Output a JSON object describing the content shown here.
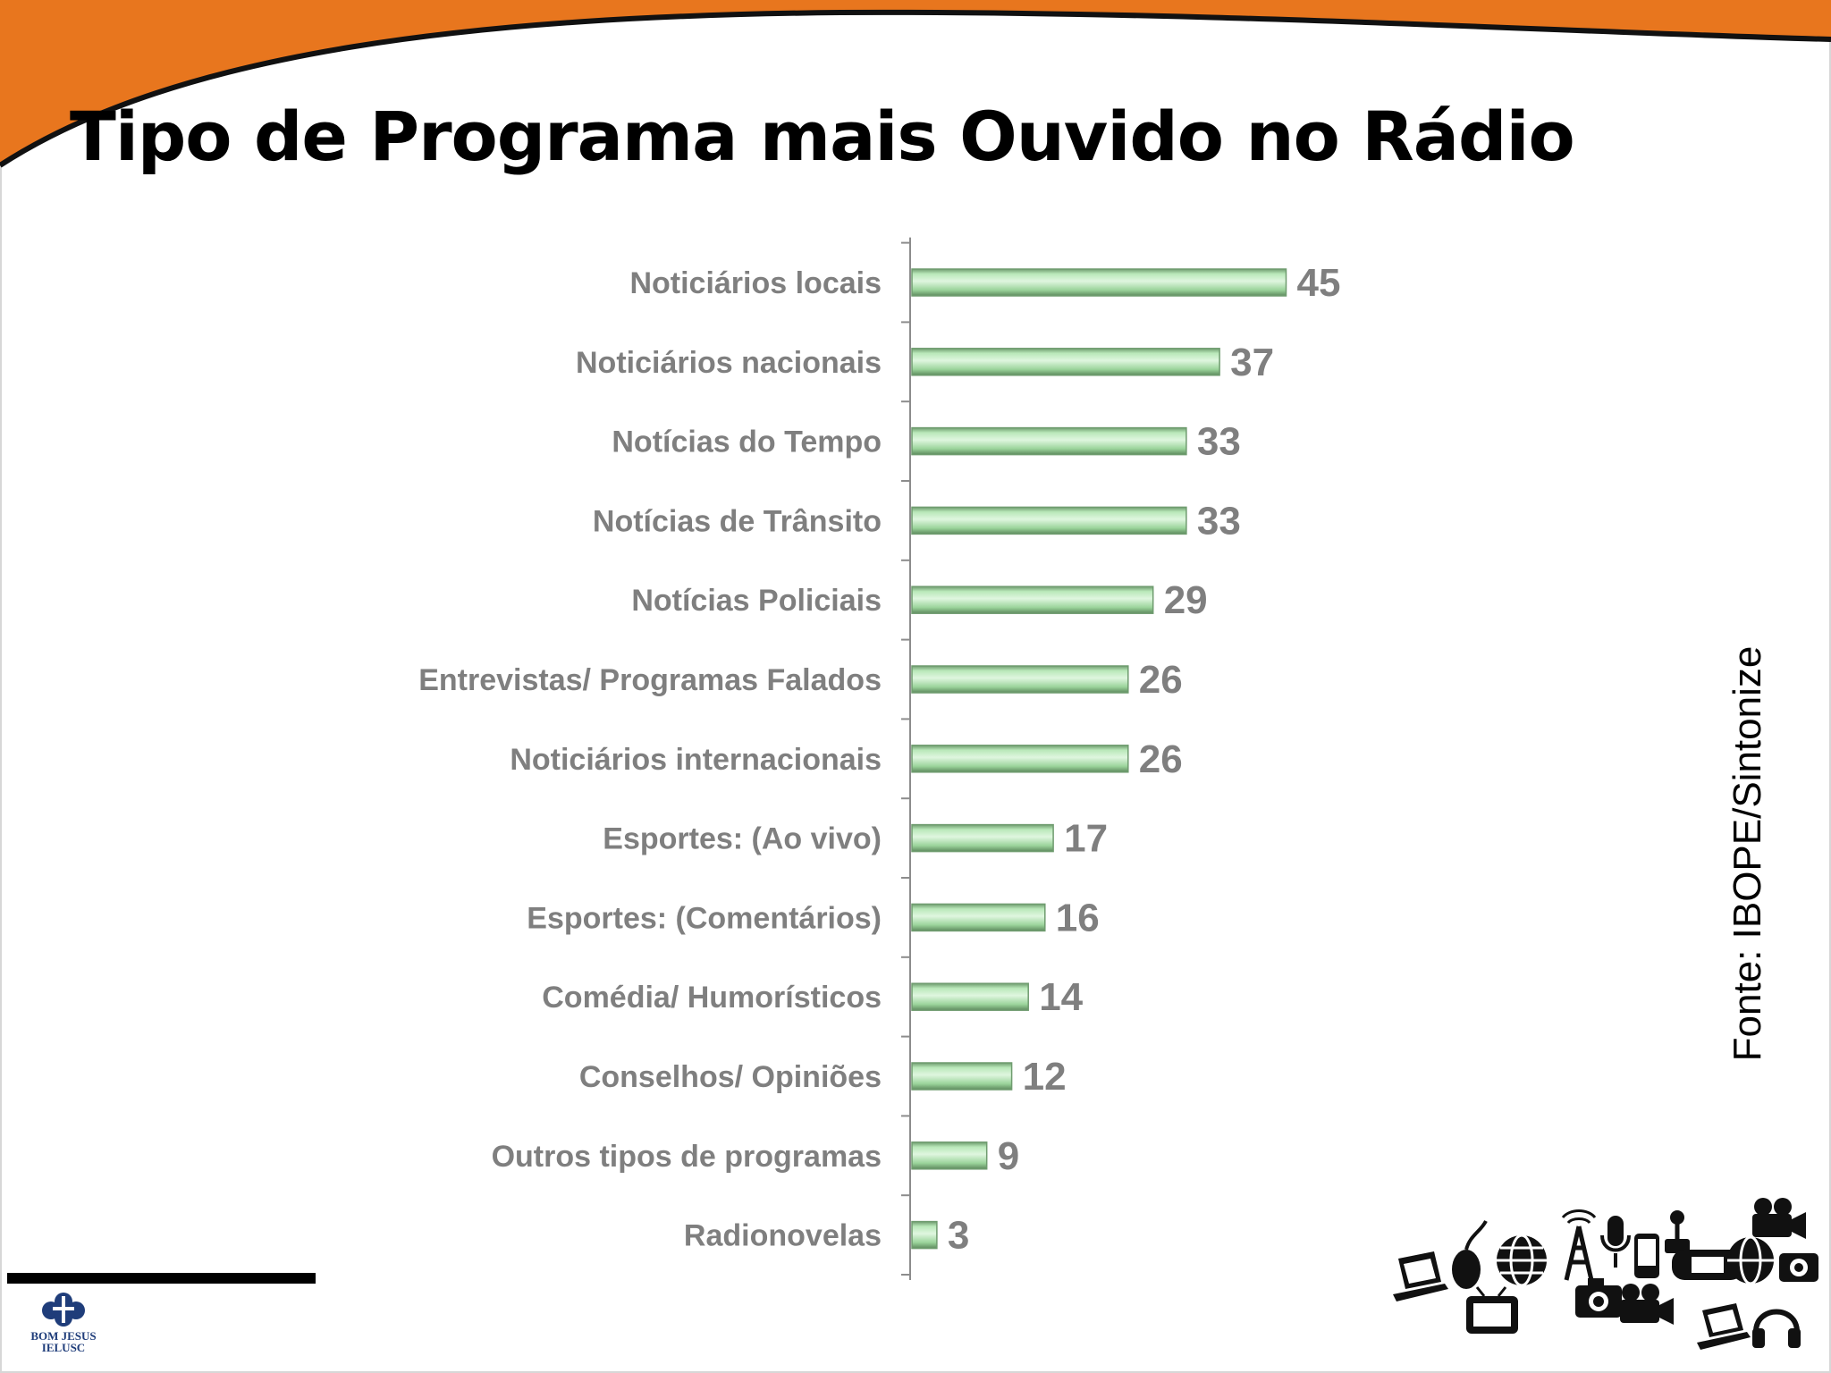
{
  "slide": {
    "title": "Tipo de Programa mais Ouvido no Rádio",
    "source": "Fonte: IBOPE/Sintonize",
    "logo_line1": "BOM JESUS",
    "logo_line2": "IELUSC"
  },
  "colors": {
    "header_orange": "#e8761e",
    "bar_green": "#9fdc9f",
    "bar_edge": "#6f9c6f",
    "label_gray": "#7f7f7f",
    "logo_blue": "#1f3d7a"
  },
  "icons": [
    "laptop-icon",
    "mouse-icon",
    "globe-icon",
    "tv-icon",
    "radio-tower-icon",
    "microphone-icon",
    "camera-icon",
    "video-camera-icon",
    "gamepad-icon",
    "mobile-phone-icon",
    "headset-icon",
    "joystick-icon"
  ],
  "chart_data": {
    "type": "bar",
    "orientation": "horizontal",
    "categories": [
      "Noticiários locais",
      "Noticiários nacionais",
      "Notícias do Tempo",
      "Notícias de Trânsito",
      "Notícias Policiais",
      "Entrevistas/ Programas Falados",
      "Noticiários internacionais",
      "Esportes: (Ao vivo)",
      "Esportes: (Comentários)",
      "Comédia/ Humorísticos",
      "Conselhos/ Opiniões",
      "Outros tipos de programas",
      "Radionovelas"
    ],
    "values": [
      45,
      37,
      33,
      33,
      29,
      26,
      26,
      17,
      16,
      14,
      12,
      9,
      3
    ],
    "data_labels": true,
    "grid": false,
    "legend": "none",
    "xlim": [
      0,
      45
    ]
  }
}
